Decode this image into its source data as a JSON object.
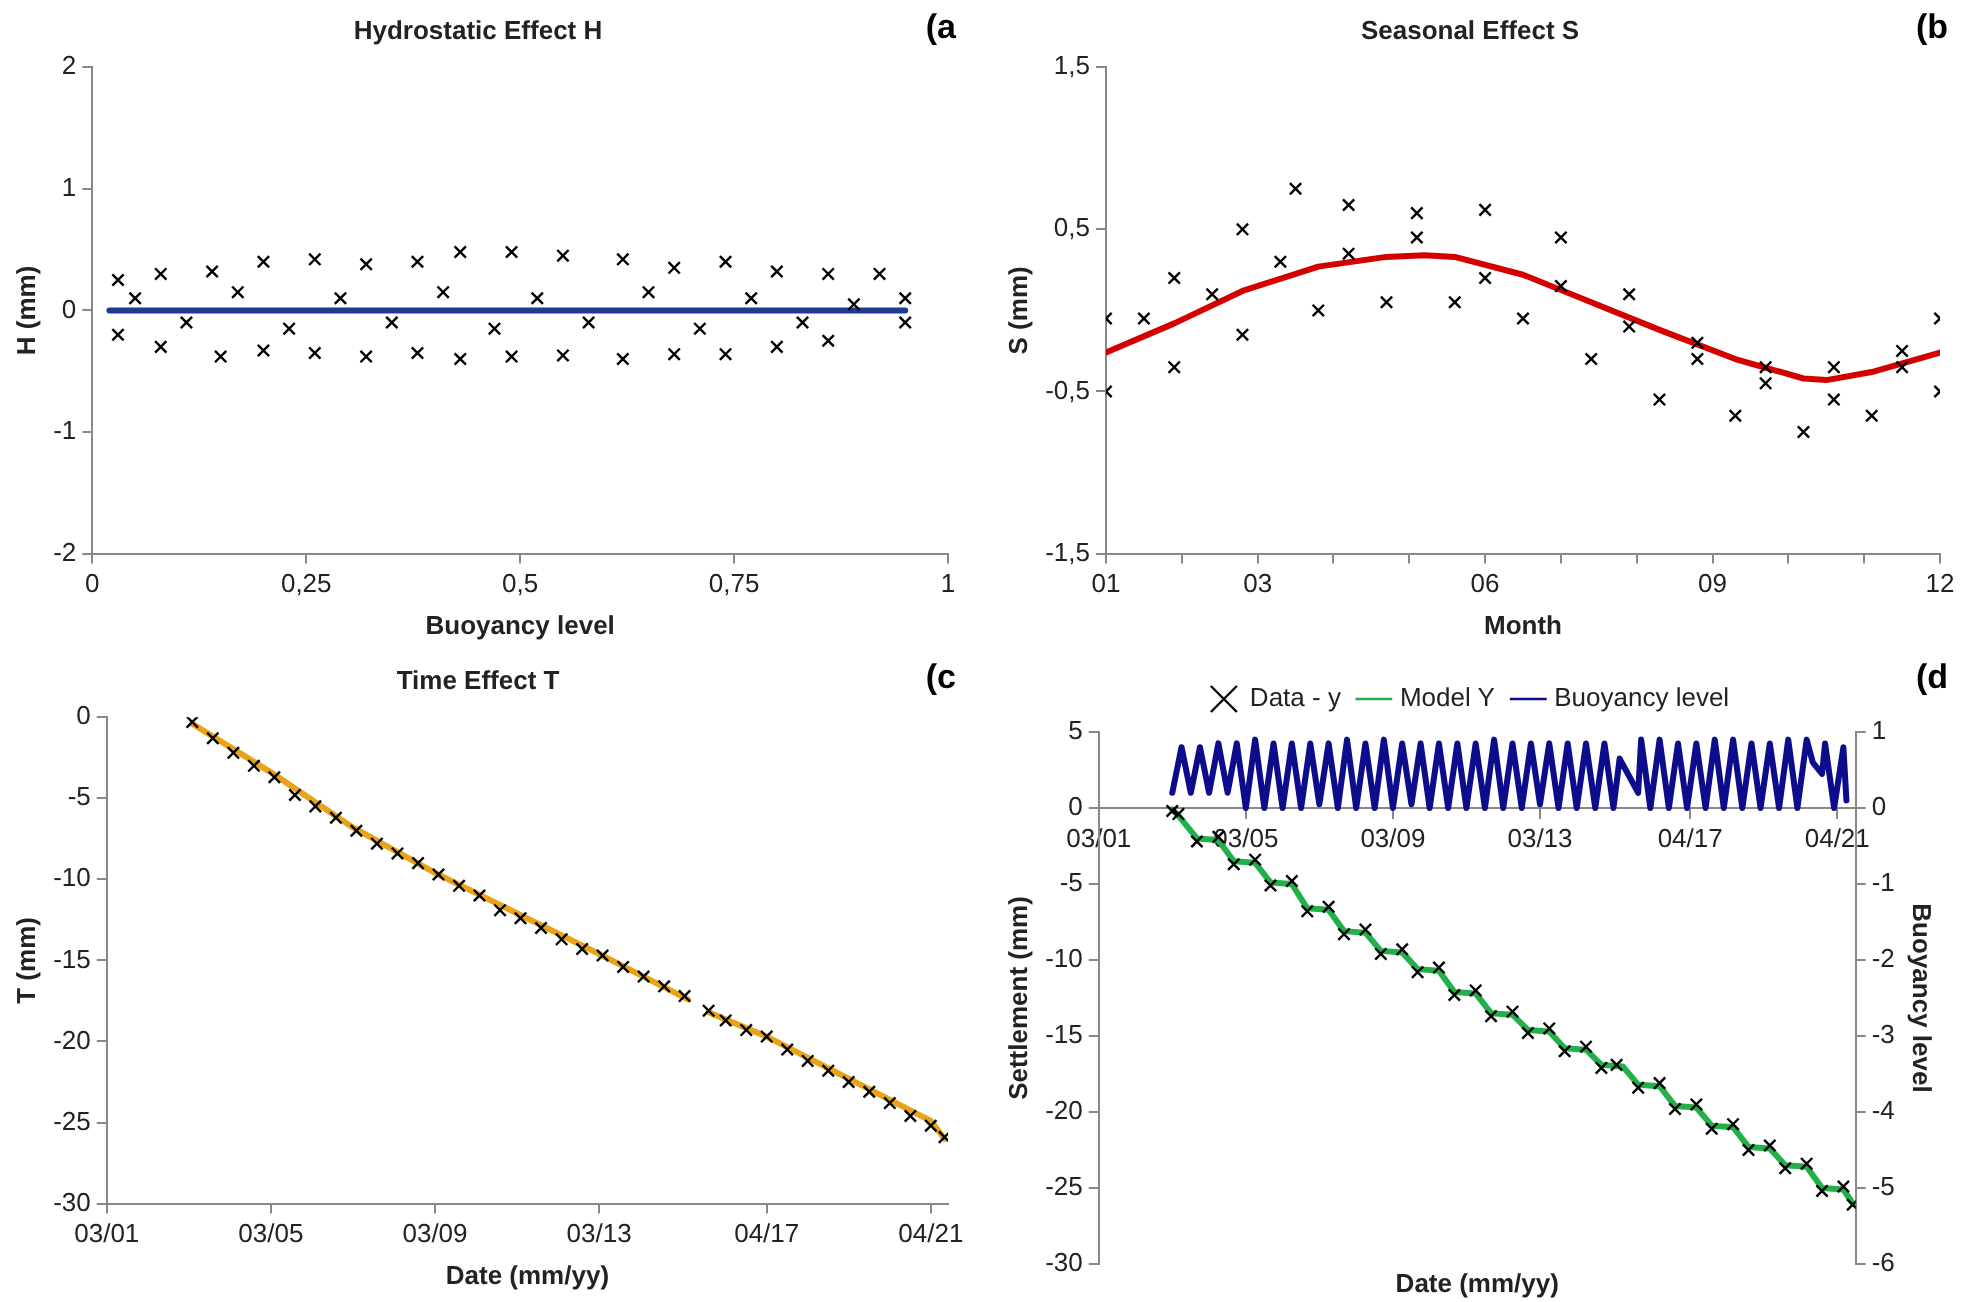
{
  "chart_data": [
    {
      "type": "scatter",
      "title": "Hydrostatic Effect H",
      "xlabel": "Buoyancy level",
      "ylabel": "H (mm)",
      "annotations": [
        "(a"
      ],
      "xlim": [
        0,
        1
      ],
      "xticks": [
        0,
        {
          "value": 0.25,
          "label": "0,25"
        },
        {
          "value": 0.5,
          "label": "0,5"
        },
        {
          "value": 0.75,
          "label": "0,75"
        },
        1
      ],
      "ylim": [
        -2,
        2
      ],
      "yticks": [
        -2,
        -1,
        0,
        1,
        2
      ],
      "series": [
        {
          "type": "scatter",
          "marker": "cross",
          "color": "#000000",
          "x": [
            0.03,
            0.08,
            0.14,
            0.2,
            0.26,
            0.32,
            0.38,
            0.43,
            0.49,
            0.55,
            0.62,
            0.68,
            0.74,
            0.8,
            0.86,
            0.92,
            0.03,
            0.08,
            0.15,
            0.2,
            0.26,
            0.32,
            0.38,
            0.43,
            0.49,
            0.55,
            0.62,
            0.68,
            0.74,
            0.8,
            0.86,
            0.95,
            0.05,
            0.11,
            0.17,
            0.23,
            0.29,
            0.35,
            0.41,
            0.47,
            0.52,
            0.58,
            0.65,
            0.71,
            0.77,
            0.83,
            0.89,
            0.95
          ],
          "values": [
            0.25,
            0.3,
            0.32,
            0.4,
            0.42,
            0.38,
            0.4,
            0.48,
            0.48,
            0.45,
            0.42,
            0.35,
            0.4,
            0.32,
            0.3,
            0.3,
            -0.2,
            -0.3,
            -0.38,
            -0.33,
            -0.35,
            -0.38,
            -0.35,
            -0.4,
            -0.38,
            -0.37,
            -0.4,
            -0.36,
            -0.36,
            -0.3,
            -0.25,
            -0.1,
            0.1,
            -0.1,
            0.15,
            -0.15,
            0.1,
            -0.1,
            0.15,
            -0.15,
            0.1,
            -0.1,
            0.15,
            -0.15,
            0.1,
            -0.1,
            0.05,
            0.1
          ]
        },
        {
          "type": "line",
          "color": "#1f3b8f",
          "x": [
            0.02,
            0.95
          ],
          "values": [
            0,
            0
          ]
        }
      ]
    },
    {
      "type": "scatter",
      "title": "Seasonal Effect S",
      "xlabel": "Month",
      "ylabel": "S (mm)",
      "annotations": [
        "(b"
      ],
      "xlim": [
        1,
        12
      ],
      "xticks": [
        {
          "value": 1,
          "label": "01"
        },
        {
          "value": 2,
          "label": null
        },
        {
          "value": 3,
          "label": "03"
        },
        {
          "value": 4,
          "label": null
        },
        {
          "value": 5,
          "label": null
        },
        {
          "value": 6,
          "label": "06"
        },
        {
          "value": 7,
          "label": null
        },
        {
          "value": 8,
          "label": null
        },
        {
          "value": 9,
          "label": "09"
        },
        {
          "value": 10,
          "label": null
        },
        {
          "value": 11,
          "label": null
        },
        {
          "value": 12,
          "label": "12"
        }
      ],
      "ylim": [
        -1.5,
        1.5
      ],
      "yticks": [
        {
          "value": -1.5,
          "label": "-1,5"
        },
        {
          "value": -0.5,
          "label": "-0,5"
        },
        {
          "value": 0.5,
          "label": "0,5"
        },
        {
          "value": 1.5,
          "label": "1,5"
        }
      ],
      "series": [
        {
          "type": "scatter",
          "marker": "cross",
          "color": "#000000",
          "x": [
            1,
            1.9,
            2.8,
            3.5,
            4.2,
            5.1,
            6,
            7,
            7.9,
            8.8,
            9.7,
            10.6,
            11.5,
            12,
            1,
            1.9,
            2.8,
            3.8,
            4.7,
            5.6,
            6.5,
            7.4,
            8.3,
            9.3,
            10.2,
            11.1,
            12,
            1.5,
            2.4,
            3.3,
            4.2,
            5.1,
            6,
            7,
            7.9,
            8.8,
            9.7,
            10.6,
            11.5
          ],
          "values": [
            -0.05,
            0.2,
            0.5,
            0.75,
            0.65,
            0.6,
            0.62,
            0.45,
            0.1,
            -0.2,
            -0.35,
            -0.35,
            -0.25,
            -0.05,
            -0.5,
            -0.35,
            -0.15,
            0.0,
            0.05,
            0.05,
            -0.05,
            -0.3,
            -0.55,
            -0.65,
            -0.75,
            -0.65,
            -0.5,
            -0.05,
            0.1,
            0.3,
            0.35,
            0.45,
            0.2,
            0.15,
            -0.1,
            -0.3,
            -0.45,
            -0.55,
            -0.35
          ]
        },
        {
          "type": "line",
          "color": "#d40000",
          "x": [
            1,
            1.9,
            2.8,
            3.8,
            4.7,
            5.2,
            5.6,
            6.5,
            7.4,
            8.3,
            9.3,
            10.2,
            10.5,
            11.1,
            12
          ],
          "values": [
            -0.26,
            -0.08,
            0.12,
            0.27,
            0.33,
            0.34,
            0.33,
            0.22,
            0.05,
            -0.12,
            -0.3,
            -0.42,
            -0.43,
            -0.38,
            -0.26
          ]
        }
      ]
    },
    {
      "type": "scatter",
      "title": "Time Effect T",
      "xlabel": "Date (mm/yy)",
      "ylabel": "T (mm)",
      "annotations": [
        "(c"
      ],
      "xlim": [
        "2001-03",
        "2021-09"
      ],
      "xticks": [
        {
          "value": "2001-03",
          "label": "03/01"
        },
        {
          "value": "2005-03",
          "label": "03/05"
        },
        {
          "value": "2009-03",
          "label": "03/09"
        },
        {
          "value": "2013-03",
          "label": "03/13"
        },
        {
          "value": "2017-04",
          "label": "04/17"
        },
        {
          "value": "2021-04",
          "label": "04/21"
        }
      ],
      "ylim": [
        -30,
        0
      ],
      "yticks": [
        0,
        -5,
        -10,
        -15,
        -20,
        -25,
        -30
      ],
      "series": [
        {
          "type": "scatter",
          "marker": "cross",
          "color": "#000000",
          "x": [
            "2003-04",
            "2003-10",
            "2004-04",
            "2004-10",
            "2005-04",
            "2005-10",
            "2006-04",
            "2006-10",
            "2007-04",
            "2007-10",
            "2008-04",
            "2008-10",
            "2009-04",
            "2009-10",
            "2010-04",
            "2010-10",
            "2011-04",
            "2011-10",
            "2012-04",
            "2012-10",
            "2013-04",
            "2013-10",
            "2014-04",
            "2014-10",
            "2015-04",
            "2015-11",
            "2016-04",
            "2016-10",
            "2017-04",
            "2017-10",
            "2018-04",
            "2018-10",
            "2019-04",
            "2019-10",
            "2020-04",
            "2020-10",
            "2021-04",
            "2021-08"
          ],
          "values": [
            -0.3,
            -1.3,
            -2.2,
            -3.0,
            -3.7,
            -4.8,
            -5.5,
            -6.2,
            -7.0,
            -7.8,
            -8.4,
            -9.0,
            -9.7,
            -10.4,
            -11.0,
            -11.9,
            -12.4,
            -13.0,
            -13.7,
            -14.3,
            -14.7,
            -15.4,
            -16.0,
            -16.6,
            -17.2,
            -18.1,
            -18.7,
            -19.3,
            -19.7,
            -20.5,
            -21.2,
            -21.8,
            -22.5,
            -23.1,
            -23.8,
            -24.6,
            -25.2,
            -25.9
          ]
        },
        {
          "type": "line",
          "color": "#e8a317",
          "x": [
            "2003-04",
            "2005-03",
            "2007-03",
            "2009-03",
            "2013-03",
            "2015-05",
            "2015-08",
            "2015-11",
            "2017-04",
            "2021-04",
            "2021-08"
          ],
          "values": [
            -0.4,
            -3.4,
            -6.8,
            -9.6,
            -14.6,
            -17.4,
            null,
            -18.2,
            -19.7,
            -24.9,
            -26.0
          ]
        }
      ]
    },
    {
      "type": "scatter",
      "xlabel": "Date (mm/yy)",
      "ylabel": "Settlement (mm)",
      "y2label": "Buoyancy level",
      "annotations": [
        "(d"
      ],
      "legend": "top",
      "xlim": [
        "2001-03",
        "2021-10"
      ],
      "xticks": [
        {
          "value": "2001-03",
          "label": "03/01"
        },
        {
          "value": "2005-03",
          "label": "03/05"
        },
        {
          "value": "2009-03",
          "label": "03/09"
        },
        {
          "value": "2013-03",
          "label": "03/13"
        },
        {
          "value": "2017-04",
          "label": "04/17"
        },
        {
          "value": "2021-04",
          "label": "04/21"
        }
      ],
      "ylim": [
        -30,
        5
      ],
      "yticks": [
        5,
        0,
        -5,
        -10,
        -15,
        -20,
        -25,
        -30
      ],
      "y2lim": [
        -6,
        1
      ],
      "y2ticks": [
        1,
        0,
        -1,
        -2,
        -3,
        -4,
        -5,
        -6
      ],
      "series": [
        {
          "name": "Data - y",
          "type": "scatter",
          "marker": "cross",
          "color": "#000000",
          "x": [
            "2003-03",
            "2003-05",
            "2003-11",
            "2004-06",
            "2004-11",
            "2005-06",
            "2005-11",
            "2006-06",
            "2006-11",
            "2007-06",
            "2007-11",
            "2008-06",
            "2008-11",
            "2009-06",
            "2009-11",
            "2010-06",
            "2010-11",
            "2011-06",
            "2011-11",
            "2012-06",
            "2012-11",
            "2013-06",
            "2013-11",
            "2014-06",
            "2014-11",
            "2015-04",
            "2015-11",
            "2016-06",
            "2016-11",
            "2017-06",
            "2017-11",
            "2018-06",
            "2018-11",
            "2019-06",
            "2019-11",
            "2020-06",
            "2020-11",
            "2021-06",
            "2021-09"
          ],
          "values": [
            -0.2,
            -0.4,
            -2.2,
            -1.9,
            -3.7,
            -3.4,
            -5.1,
            -4.8,
            -6.8,
            -6.5,
            -8.3,
            -8.0,
            -9.6,
            -9.3,
            -10.8,
            -10.5,
            -12.3,
            -12.0,
            -13.7,
            -13.4,
            -14.8,
            -14.5,
            -16.0,
            -15.7,
            -17.1,
            -16.9,
            -18.4,
            -18.1,
            -19.8,
            -19.5,
            -21.1,
            -20.8,
            -22.5,
            -22.2,
            -23.7,
            -23.4,
            -25.2,
            -24.9,
            -26.1
          ]
        },
        {
          "name": "Model Y",
          "type": "line",
          "color": "#22b04b",
          "x": [
            "2003-03",
            "2003-05",
            "2003-11",
            "2004-06",
            "2004-11",
            "2005-06",
            "2005-11",
            "2006-06",
            "2006-11",
            "2007-06",
            "2007-11",
            "2008-06",
            "2008-11",
            "2009-06",
            "2009-11",
            "2010-06",
            "2010-11",
            "2011-06",
            "2011-11",
            "2012-06",
            "2012-11",
            "2013-06",
            "2013-11",
            "2014-06",
            "2014-11",
            "2015-06",
            "2015-11",
            "2016-06",
            "2016-11",
            "2017-06",
            "2017-11",
            "2018-06",
            "2018-11",
            "2019-06",
            "2019-11",
            "2020-06",
            "2020-11",
            "2021-06",
            "2021-09"
          ],
          "values": [
            -0.1,
            -0.5,
            -2.0,
            -2.1,
            -3.5,
            -3.6,
            -4.9,
            -5.0,
            -6.6,
            -6.7,
            -8.1,
            -8.2,
            -9.4,
            -9.5,
            -10.6,
            -10.7,
            -12.1,
            -12.2,
            -13.5,
            -13.6,
            -14.6,
            -14.7,
            -15.8,
            -15.9,
            -16.9,
            -17.0,
            -18.2,
            -18.3,
            -19.6,
            -19.7,
            -20.9,
            -21.0,
            -22.3,
            -22.4,
            -23.5,
            -23.6,
            -25.0,
            -25.1,
            -26.0
          ]
        },
        {
          "name": "Buoyancy level",
          "type": "line",
          "axis": "y2",
          "color": "#0d0d8c",
          "x": [
            "2003-03",
            "2003-06",
            "2003-09",
            "2003-12",
            "2004-03",
            "2004-06",
            "2004-09",
            "2004-12",
            "2005-03",
            "2005-06",
            "2005-09",
            "2005-12",
            "2006-03",
            "2006-06",
            "2006-09",
            "2006-12",
            "2007-03",
            "2007-06",
            "2007-09",
            "2007-12",
            "2008-03",
            "2008-06",
            "2008-09",
            "2008-12",
            "2009-03",
            "2009-06",
            "2009-09",
            "2009-12",
            "2010-03",
            "2010-06",
            "2010-09",
            "2010-12",
            "2011-03",
            "2011-06",
            "2011-09",
            "2011-12",
            "2012-03",
            "2012-06",
            "2012-09",
            "2012-12",
            "2013-03",
            "2013-06",
            "2013-09",
            "2013-12",
            "2014-03",
            "2014-06",
            "2014-09",
            "2014-12",
            "2015-03",
            "2015-05",
            "2015-11",
            "2015-12",
            "2016-03",
            "2016-06",
            "2016-09",
            "2016-12",
            "2017-03",
            "2017-06",
            "2017-09",
            "2017-12",
            "2018-03",
            "2018-06",
            "2018-09",
            "2018-12",
            "2019-03",
            "2019-06",
            "2019-09",
            "2019-12",
            "2020-03",
            "2020-06",
            "2020-08",
            "2020-11",
            "2020-12",
            "2021-03",
            "2021-06",
            "2021-07"
          ],
          "values": [
            0.2,
            0.8,
            0.2,
            0.8,
            0.2,
            0.85,
            0.2,
            0.85,
            0.0,
            0.9,
            0.0,
            0.85,
            0.0,
            0.85,
            0.0,
            0.85,
            0.05,
            0.85,
            0.0,
            0.9,
            0.0,
            0.85,
            0.0,
            0.9,
            0.0,
            0.85,
            0.05,
            0.85,
            0.0,
            0.85,
            0.0,
            0.85,
            0.0,
            0.85,
            0.0,
            0.9,
            0.0,
            0.85,
            0.0,
            0.85,
            0.05,
            0.85,
            0.0,
            0.85,
            0.0,
            0.85,
            0.0,
            0.85,
            0.0,
            0.65,
            0.2,
            0.9,
            0.0,
            0.9,
            0.0,
            0.85,
            0.0,
            0.85,
            0.0,
            0.9,
            0.0,
            0.9,
            0.0,
            0.85,
            0.0,
            0.85,
            0.0,
            0.9,
            0.0,
            0.9,
            0.6,
            0.45,
            0.85,
            0.0,
            0.8,
            0.1
          ]
        }
      ]
    }
  ]
}
